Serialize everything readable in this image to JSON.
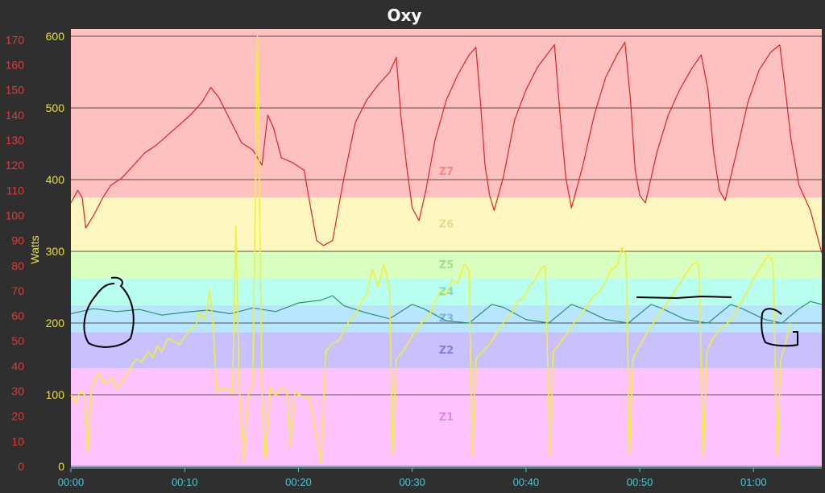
{
  "window": {
    "title": "Oxy"
  },
  "chart_data": {
    "type": "line",
    "title": "Oxy",
    "ylabel": "Watts",
    "ylim": [
      0,
      600
    ],
    "y_ticks": [
      0,
      100,
      200,
      300,
      400,
      500,
      600
    ],
    "secondary_ylim": [
      0,
      175
    ],
    "secondary_ticks": [
      0,
      10,
      20,
      30,
      40,
      50,
      60,
      70,
      80,
      90,
      100,
      110,
      120,
      130,
      140,
      150,
      160,
      170
    ],
    "x_ticks": [
      {
        "min": 0,
        "label": "00:00"
      },
      {
        "min": 10,
        "label": "00:10"
      },
      {
        "min": 20,
        "label": "00:20"
      },
      {
        "min": 30,
        "label": "00:30"
      },
      {
        "min": 40,
        "label": "00:40"
      },
      {
        "min": 50,
        "label": "00:50"
      },
      {
        "min": 60,
        "label": "01:00"
      }
    ],
    "xlim_minutes": [
      0,
      66
    ],
    "grid": "horizontal",
    "colors": {
      "red": "#e02424",
      "yellow": "#f0f03a",
      "green": "#2f8f6f"
    },
    "zones": [
      {
        "label": "Z1",
        "from": 0,
        "to": 137,
        "color": "#ffc4ff",
        "label_color": "#e08ae0"
      },
      {
        "label": "Z2",
        "from": 137,
        "to": 187,
        "color": "#c8c0ff",
        "label_color": "#8080e0"
      },
      {
        "label": "Z3",
        "from": 187,
        "to": 225,
        "color": "#b8e6ff",
        "label_color": "#84b0e8"
      },
      {
        "label": "Z4",
        "from": 225,
        "to": 262,
        "color": "#b8fff0",
        "label_color": "#80d8c0"
      },
      {
        "label": "Z5",
        "from": 262,
        "to": 300,
        "color": "#d8ffc0",
        "label_color": "#a0e090"
      },
      {
        "label": "Z6",
        "from": 300,
        "to": 375,
        "color": "#fff6c0",
        "label_color": "#e8dc88"
      },
      {
        "label": "Z7",
        "from": 375,
        "to": 610,
        "color": "#ffc0c0",
        "label_color": "#f08a8a"
      }
    ],
    "series": [
      {
        "color": "red",
        "axis": "secondary",
        "points": [
          [
            0,
            105
          ],
          [
            0.6,
            110
          ],
          [
            1,
            107
          ],
          [
            1.3,
            95
          ],
          [
            2,
            100
          ],
          [
            2.8,
            107
          ],
          [
            3.5,
            112
          ],
          [
            4.5,
            115
          ],
          [
            5.5,
            120
          ],
          [
            6.5,
            125
          ],
          [
            7.5,
            128
          ],
          [
            8.5,
            132
          ],
          [
            9.5,
            136
          ],
          [
            10.5,
            140
          ],
          [
            11.5,
            145
          ],
          [
            12.3,
            151
          ],
          [
            13,
            147
          ],
          [
            14,
            138
          ],
          [
            15,
            129
          ],
          [
            16,
            126
          ],
          [
            16.8,
            120
          ],
          [
            17.3,
            140
          ],
          [
            17.8,
            135
          ],
          [
            18.5,
            123
          ],
          [
            19.5,
            121
          ],
          [
            20.5,
            118
          ],
          [
            21,
            105
          ],
          [
            21.6,
            90
          ],
          [
            22.2,
            88
          ],
          [
            23,
            90
          ],
          [
            24,
            115
          ],
          [
            25,
            137
          ],
          [
            26,
            146
          ],
          [
            27,
            152
          ],
          [
            28,
            157
          ],
          [
            28.6,
            163
          ],
          [
            29,
            140
          ],
          [
            29.5,
            120
          ],
          [
            30,
            103
          ],
          [
            30.6,
            98
          ],
          [
            31.2,
            110
          ],
          [
            32,
            130
          ],
          [
            33,
            146
          ],
          [
            34,
            156
          ],
          [
            35,
            164
          ],
          [
            35.6,
            167
          ],
          [
            36,
            145
          ],
          [
            36.4,
            120
          ],
          [
            36.8,
            108
          ],
          [
            37.2,
            102
          ],
          [
            38,
            115
          ],
          [
            39,
            138
          ],
          [
            40,
            150
          ],
          [
            41,
            159
          ],
          [
            42,
            165
          ],
          [
            42.5,
            168
          ],
          [
            43,
            140
          ],
          [
            43.5,
            115
          ],
          [
            44,
            103
          ],
          [
            45,
            120
          ],
          [
            46,
            140
          ],
          [
            47,
            155
          ],
          [
            48,
            164
          ],
          [
            48.7,
            169
          ],
          [
            49.2,
            145
          ],
          [
            49.6,
            118
          ],
          [
            50,
            108
          ],
          [
            50.5,
            105
          ],
          [
            51.5,
            125
          ],
          [
            52.5,
            140
          ],
          [
            53.5,
            150
          ],
          [
            54.5,
            158
          ],
          [
            55.4,
            164
          ],
          [
            56,
            150
          ],
          [
            56.5,
            125
          ],
          [
            57,
            110
          ],
          [
            57.5,
            106
          ],
          [
            58.5,
            125
          ],
          [
            59.5,
            145
          ],
          [
            60.5,
            158
          ],
          [
            61.5,
            165
          ],
          [
            62.3,
            168
          ],
          [
            62.8,
            150
          ],
          [
            63.3,
            130
          ],
          [
            64,
            112
          ],
          [
            65,
            102
          ],
          [
            66,
            85
          ]
        ]
      },
      {
        "color": "green",
        "axis": "primary",
        "points": [
          [
            0,
            213
          ],
          [
            2,
            220
          ],
          [
            4,
            216
          ],
          [
            6,
            219
          ],
          [
            8,
            211
          ],
          [
            10,
            215
          ],
          [
            12,
            218
          ],
          [
            14,
            213
          ],
          [
            16,
            221
          ],
          [
            18,
            216
          ],
          [
            20,
            228
          ],
          [
            22,
            232
          ],
          [
            23,
            238
          ],
          [
            24,
            224
          ],
          [
            26,
            214
          ],
          [
            28,
            206
          ],
          [
            30,
            226
          ],
          [
            31,
            220
          ],
          [
            33,
            203
          ],
          [
            35,
            200
          ],
          [
            37,
            226
          ],
          [
            38,
            222
          ],
          [
            40,
            205
          ],
          [
            42,
            200
          ],
          [
            44,
            226
          ],
          [
            45,
            220
          ],
          [
            47,
            205
          ],
          [
            49,
            200
          ],
          [
            51,
            226
          ],
          [
            52,
            220
          ],
          [
            54,
            205
          ],
          [
            56,
            200
          ],
          [
            58,
            226
          ],
          [
            59,
            220
          ],
          [
            61,
            205
          ],
          [
            62.5,
            200
          ],
          [
            64,
            220
          ],
          [
            65,
            230
          ],
          [
            66,
            226
          ]
        ]
      },
      {
        "color": "yellow",
        "axis": "primary",
        "points": [
          [
            0,
            100
          ],
          [
            0.4,
            88
          ],
          [
            0.8,
            105
          ],
          [
            1.2,
            100
          ],
          [
            1.5,
            20
          ],
          [
            1.8,
            110
          ],
          [
            2.4,
            130
          ],
          [
            3,
            115
          ],
          [
            3.6,
            125
          ],
          [
            4,
            108
          ],
          [
            4.5,
            118
          ],
          [
            5,
            130
          ],
          [
            5.5,
            145
          ],
          [
            5.8,
            150
          ],
          [
            6.2,
            146
          ],
          [
            6.8,
            160
          ],
          [
            7.2,
            152
          ],
          [
            7.6,
            168
          ],
          [
            8,
            160
          ],
          [
            8.5,
            178
          ],
          [
            9,
            175
          ],
          [
            9.5,
            170
          ],
          [
            10,
            180
          ],
          [
            10.5,
            190
          ],
          [
            11,
            198
          ],
          [
            11.3,
            215
          ],
          [
            11.8,
            205
          ],
          [
            12.2,
            245
          ],
          [
            12.5,
            200
          ],
          [
            12.8,
            105
          ],
          [
            13.5,
            110
          ],
          [
            14.2,
            102
          ],
          [
            14.5,
            335
          ],
          [
            14.8,
            110
          ],
          [
            15.2,
            8
          ],
          [
            15.6,
            100
          ],
          [
            16,
            115
          ],
          [
            16.4,
            600
          ],
          [
            16.8,
            105
          ],
          [
            17.1,
            8
          ],
          [
            17.5,
            110
          ],
          [
            18,
            98
          ],
          [
            18.5,
            110
          ],
          [
            19,
            105
          ],
          [
            19.3,
            30
          ],
          [
            19.7,
            105
          ],
          [
            20,
            100
          ],
          [
            21,
            95
          ],
          [
            22,
            5
          ],
          [
            22.4,
            160
          ],
          [
            23,
            172
          ],
          [
            23.5,
            175
          ],
          [
            24,
            188
          ],
          [
            24.5,
            205
          ],
          [
            25,
            210
          ],
          [
            25.5,
            230
          ],
          [
            26,
            240
          ],
          [
            26.5,
            275
          ],
          [
            27,
            250
          ],
          [
            27.5,
            282
          ],
          [
            28,
            250
          ],
          [
            28.3,
            15
          ],
          [
            28.6,
            150
          ],
          [
            29.2,
            160
          ],
          [
            30,
            182
          ],
          [
            30.8,
            200
          ],
          [
            31.5,
            210
          ],
          [
            32,
            230
          ],
          [
            32.5,
            245
          ],
          [
            33,
            240
          ],
          [
            33.5,
            260
          ],
          [
            34,
            255
          ],
          [
            34.6,
            282
          ],
          [
            35,
            275
          ],
          [
            35.3,
            15
          ],
          [
            35.6,
            150
          ],
          [
            36.2,
            160
          ],
          [
            37,
            175
          ],
          [
            37.6,
            190
          ],
          [
            38.2,
            205
          ],
          [
            38.8,
            215
          ],
          [
            39.3,
            230
          ],
          [
            39.8,
            235
          ],
          [
            40.2,
            248
          ],
          [
            40.7,
            258
          ],
          [
            41.3,
            275
          ],
          [
            41.7,
            280
          ],
          [
            42.1,
            15
          ],
          [
            42.4,
            160
          ],
          [
            43,
            172
          ],
          [
            43.6,
            185
          ],
          [
            44.2,
            200
          ],
          [
            44.8,
            210
          ],
          [
            45.5,
            228
          ],
          [
            46,
            238
          ],
          [
            46.5,
            245
          ],
          [
            47,
            258
          ],
          [
            47.5,
            275
          ],
          [
            48,
            280
          ],
          [
            48.4,
            305
          ],
          [
            48.8,
            295
          ],
          [
            49.1,
            15
          ],
          [
            49.4,
            150
          ],
          [
            50,
            168
          ],
          [
            50.6,
            185
          ],
          [
            51.2,
            200
          ],
          [
            51.8,
            215
          ],
          [
            52.3,
            225
          ],
          [
            52.8,
            238
          ],
          [
            53.3,
            250
          ],
          [
            53.8,
            262
          ],
          [
            54.3,
            275
          ],
          [
            54.8,
            285
          ],
          [
            55.2,
            280
          ],
          [
            55.6,
            15
          ],
          [
            55.9,
            160
          ],
          [
            56.4,
            178
          ],
          [
            57,
            190
          ],
          [
            57.6,
            198
          ],
          [
            58.2,
            208
          ],
          [
            58.8,
            226
          ],
          [
            59.3,
            240
          ],
          [
            59.8,
            255
          ],
          [
            60.3,
            270
          ],
          [
            60.8,
            282
          ],
          [
            61.3,
            295
          ],
          [
            61.7,
            285
          ],
          [
            62.1,
            15
          ],
          [
            62.4,
            150
          ],
          [
            62.8,
            170
          ],
          [
            63.2,
            200
          ]
        ]
      }
    ]
  }
}
